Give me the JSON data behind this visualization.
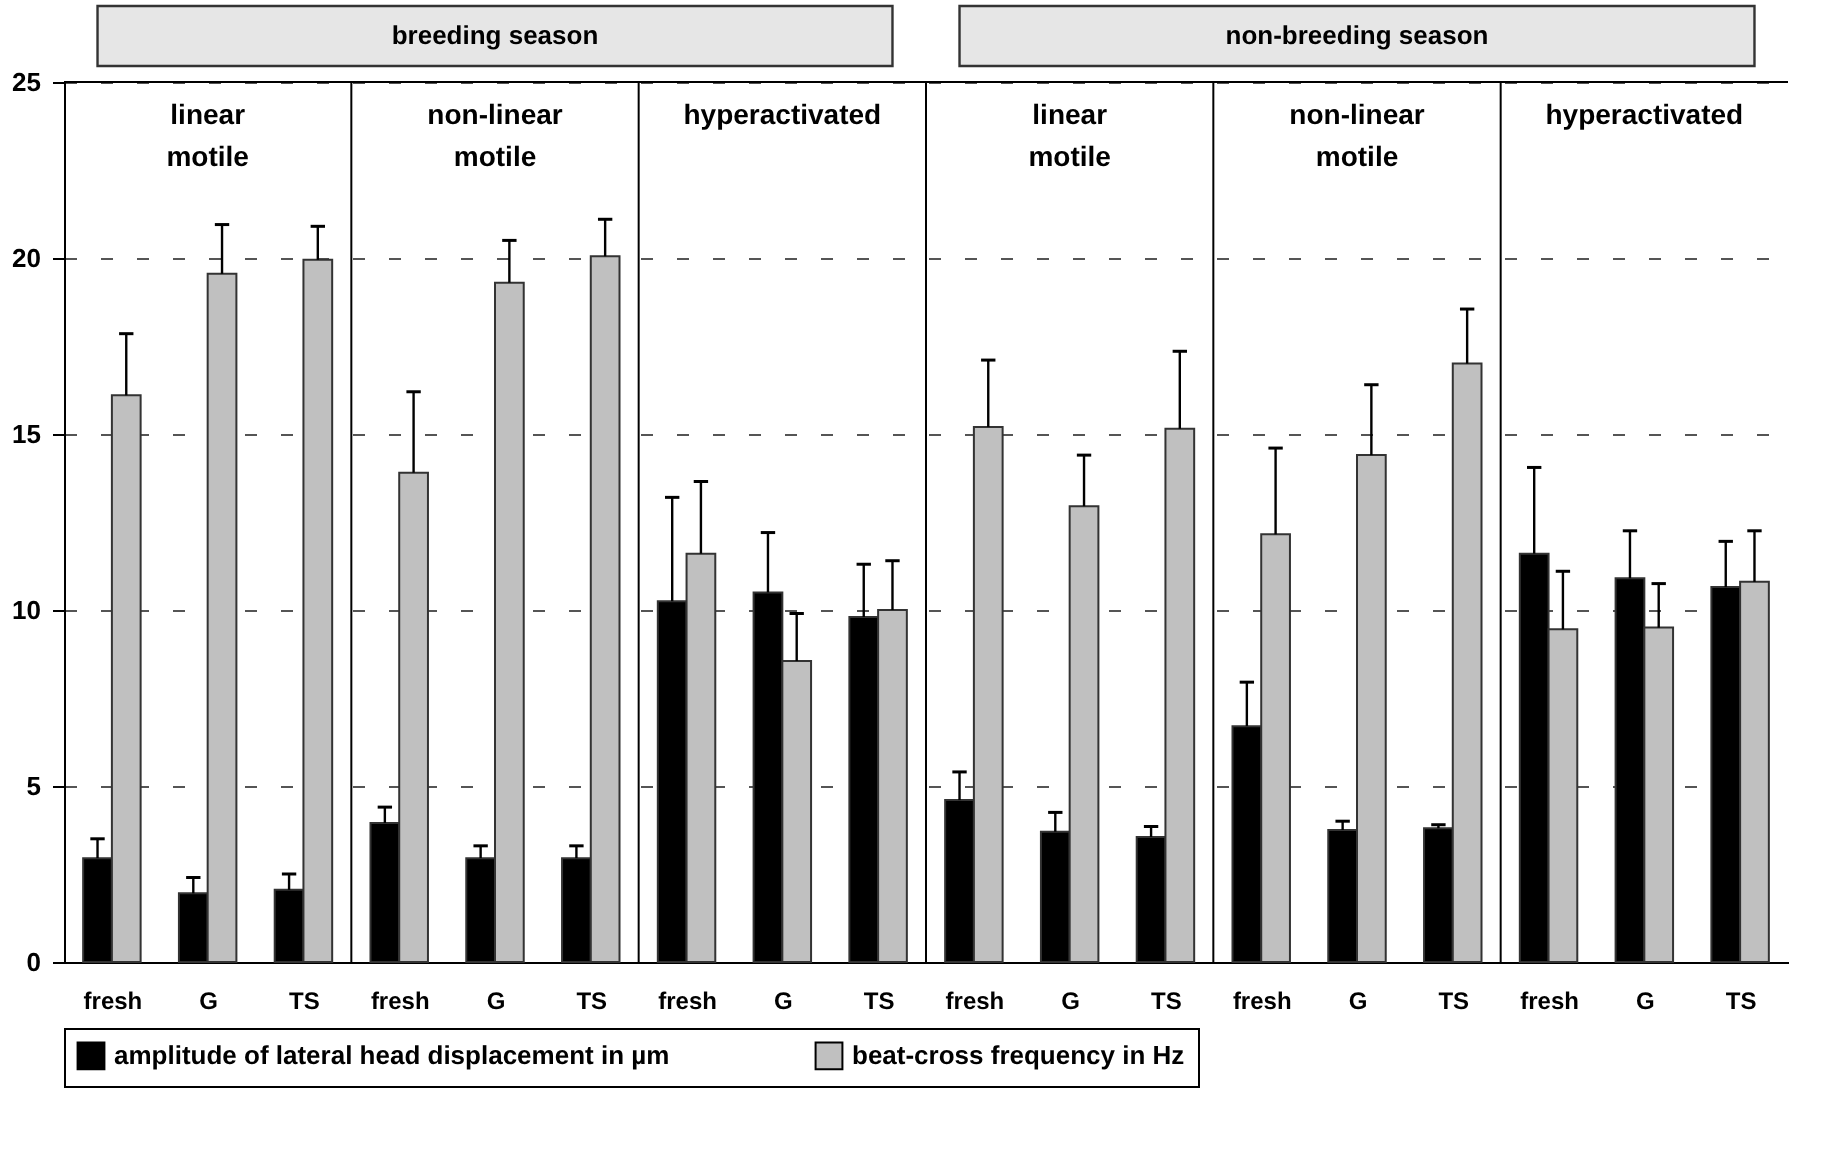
{
  "chart_data": {
    "type": "bar",
    "categories": [
      "fresh",
      "G",
      "TS",
      "fresh",
      "G",
      "TS",
      "fresh",
      "G",
      "TS",
      "fresh",
      "G",
      "TS",
      "fresh",
      "G",
      "TS",
      "fresh",
      "G",
      "TS"
    ],
    "series": [
      {
        "name": "amplitude of lateral head displacement in µm",
        "color": "#000000",
        "values": [
          2.95,
          1.95,
          2.05,
          3.95,
          2.95,
          2.95,
          10.25,
          10.5,
          9.8,
          4.6,
          3.7,
          3.55,
          6.7,
          3.75,
          3.8,
          11.6,
          10.9,
          10.65
        ],
        "errors": [
          [
            2.95,
            3.5
          ],
          [
            1.95,
            2.4
          ],
          [
            2.05,
            2.5
          ],
          [
            3.95,
            4.4
          ],
          [
            2.95,
            3.3
          ],
          [
            2.95,
            3.3
          ],
          [
            10.25,
            13.2
          ],
          [
            10.5,
            12.2
          ],
          [
            9.8,
            11.3
          ],
          [
            4.6,
            5.4
          ],
          [
            3.7,
            4.25
          ],
          [
            3.55,
            3.85
          ],
          [
            6.7,
            7.95
          ],
          [
            3.75,
            4.0
          ],
          [
            3.8,
            3.9
          ],
          [
            11.6,
            14.05
          ],
          [
            10.9,
            12.25
          ],
          [
            10.65,
            11.95
          ]
        ]
      },
      {
        "name": "beat-cross frequency in Hz",
        "color": "#c0c0c0",
        "values": [
          16.1,
          19.55,
          19.95,
          13.9,
          19.3,
          20.05,
          11.6,
          8.55,
          10.0,
          15.2,
          12.95,
          15.15,
          12.15,
          14.4,
          17.0,
          9.45,
          9.5,
          10.8
        ],
        "errors": [
          [
            16.1,
            17.85
          ],
          [
            19.55,
            20.95
          ],
          [
            19.95,
            20.9
          ],
          [
            13.9,
            16.2
          ],
          [
            19.3,
            20.5
          ],
          [
            20.05,
            21.1
          ],
          [
            11.6,
            13.65
          ],
          [
            8.55,
            9.9
          ],
          [
            10.0,
            11.4
          ],
          [
            15.2,
            17.1
          ],
          [
            12.95,
            14.4
          ],
          [
            15.15,
            17.35
          ],
          [
            12.15,
            14.6
          ],
          [
            14.4,
            16.4
          ],
          [
            17.0,
            18.55
          ],
          [
            9.45,
            11.1
          ],
          [
            9.5,
            10.75
          ],
          [
            10.8,
            12.25
          ]
        ]
      }
    ],
    "ylim": [
      0,
      25
    ],
    "yticks": [
      0,
      5,
      10,
      15,
      20,
      25
    ],
    "grid": "y",
    "legend": "bottom",
    "annotations": [
      "breeding season",
      "non-breeding season",
      "linear motile",
      "non-linear motile",
      "hyperactivated",
      "linear motile",
      "non-linear motile",
      "hyperactivated"
    ]
  }
}
